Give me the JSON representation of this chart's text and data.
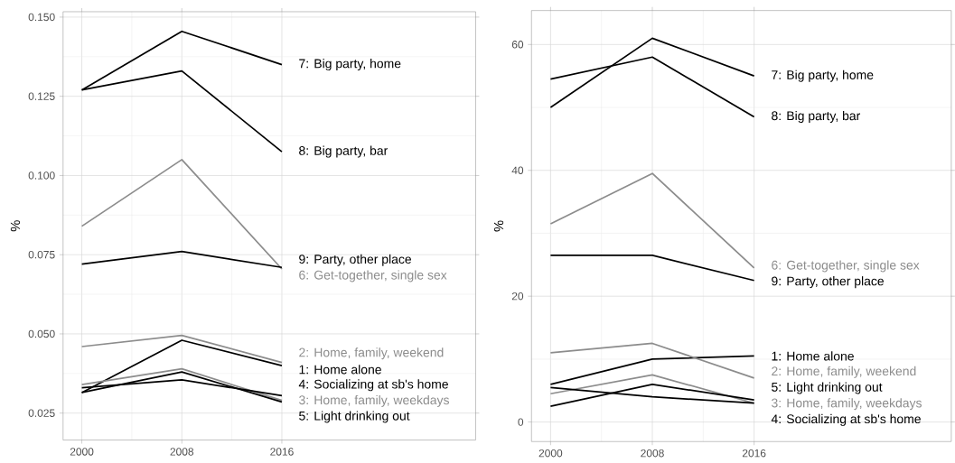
{
  "chart_data": [
    {
      "type": "line",
      "x": [
        2000,
        2008,
        2016
      ],
      "xlim": [
        1998.5,
        2031.5
      ],
      "xticks": [
        2000,
        2008,
        2016
      ],
      "ylim": [
        0.0165,
        0.1517
      ],
      "yticks": [
        {
          "value": 0.025,
          "label": "0.025"
        },
        {
          "value": 0.05,
          "label": "0.050"
        },
        {
          "value": 0.075,
          "label": "0.075"
        },
        {
          "value": 0.1,
          "label": "0.100"
        },
        {
          "value": 0.125,
          "label": "0.125"
        },
        {
          "value": 0.15,
          "label": "0.150"
        }
      ],
      "ylabel": "%",
      "grid": true,
      "series": [
        {
          "name": "1: Home alone",
          "color": "#000000",
          "values": [
            0.0315,
            0.048,
            0.04
          ]
        },
        {
          "name": "2: Home, family, weekend",
          "color": "#8c8c8c",
          "values": [
            0.046,
            0.0495,
            0.041
          ]
        },
        {
          "name": "3: Home, family, weekdays",
          "color": "#8c8c8c",
          "values": [
            0.034,
            0.039,
            0.029
          ]
        },
        {
          "name": "4: Socializing at sb's home",
          "color": "#000000",
          "values": [
            0.033,
            0.0355,
            0.0305
          ]
        },
        {
          "name": "5: Light drinking out",
          "color": "#000000",
          "values": [
            0.0315,
            0.038,
            0.0285
          ]
        },
        {
          "name": "6: Get-together, single sex",
          "color": "#8c8c8c",
          "values": [
            0.084,
            0.105,
            0.0705
          ]
        },
        {
          "name": "7: Big party, home",
          "color": "#000000",
          "values": [
            0.127,
            0.1455,
            0.135
          ]
        },
        {
          "name": "8: Big party, bar",
          "color": "#000000",
          "values": [
            0.127,
            0.133,
            0.1075
          ]
        },
        {
          "name": "9: Party, other place",
          "color": "#000000",
          "values": [
            0.072,
            0.076,
            0.071
          ]
        }
      ]
    },
    {
      "type": "line",
      "x": [
        2000,
        2008,
        2016
      ],
      "xlim": [
        1998.5,
        2031.5
      ],
      "xticks": [
        2000,
        2008,
        2016
      ],
      "ylim": [
        -3.1,
        65.4
      ],
      "yticks": [
        0,
        20,
        40,
        60
      ],
      "ylabel": "%",
      "grid": true,
      "series": [
        {
          "name": "1: Home alone",
          "color": "#000000",
          "values": [
            6,
            10,
            10.5
          ]
        },
        {
          "name": "2: Home, family, weekend",
          "color": "#8c8c8c",
          "values": [
            11,
            12.5,
            7
          ]
        },
        {
          "name": "3: Home, family, weekdays",
          "color": "#8c8c8c",
          "values": [
            4.5,
            7.5,
            3
          ]
        },
        {
          "name": "4: Socializing at sb's home",
          "color": "#000000",
          "values": [
            5.5,
            4,
            3
          ]
        },
        {
          "name": "5: Light drinking out",
          "color": "#000000",
          "values": [
            2.5,
            6,
            3.5
          ]
        },
        {
          "name": "6: Get-together, single sex",
          "color": "#8c8c8c",
          "values": [
            31.5,
            39.5,
            24.5
          ]
        },
        {
          "name": "7: Big party, home",
          "color": "#000000",
          "values": [
            50,
            61,
            55
          ]
        },
        {
          "name": "8: Big party, bar",
          "color": "#000000",
          "values": [
            54.5,
            58,
            48.5
          ]
        },
        {
          "name": "9: Party, other place",
          "color": "#000000",
          "values": [
            26.5,
            26.5,
            22.5
          ]
        }
      ]
    }
  ]
}
